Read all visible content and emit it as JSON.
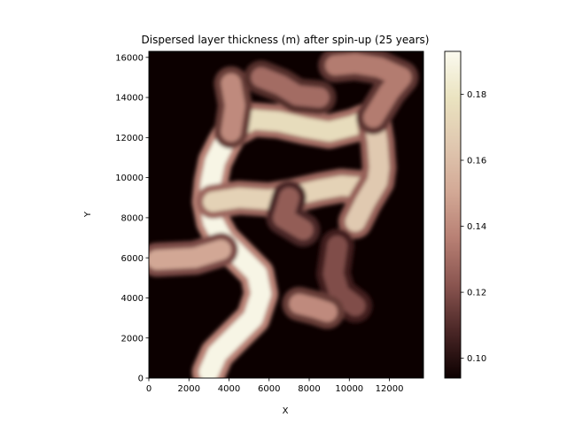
{
  "chart_data": {
    "type": "heatmap",
    "title": "Dispersed layer thickness (m) after spin-up (25 years)",
    "xlabel": "X",
    "ylabel": "Y",
    "xlim": [
      0,
      13700
    ],
    "ylim": [
      0,
      16300
    ],
    "xticks": [
      0,
      2000,
      4000,
      6000,
      8000,
      10000,
      12000
    ],
    "yticks": [
      0,
      2000,
      4000,
      6000,
      8000,
      10000,
      12000,
      14000,
      16000
    ],
    "colorbar": {
      "range": [
        0.094,
        0.193
      ],
      "ticks": [
        0.1,
        0.12,
        0.14,
        0.16,
        0.18
      ],
      "tick_labels": [
        "0.10",
        "0.12",
        "0.14",
        "0.16",
        "0.18"
      ],
      "colormap": "pink-like",
      "colors": [
        "#0c0000",
        "#4a2626",
        "#8a5550",
        "#b88074",
        "#d3a996",
        "#e0c8b0",
        "#eae3c0",
        "#fbfaef"
      ]
    },
    "background_value": 0.094,
    "features": [
      {
        "name": "main-N-S-channel",
        "value": 0.19,
        "path": [
          [
            3000,
            300
          ],
          [
            3400,
            1200
          ],
          [
            4200,
            2000
          ],
          [
            5200,
            3000
          ],
          [
            5600,
            4200
          ],
          [
            5400,
            5200
          ],
          [
            4500,
            6100
          ],
          [
            3700,
            6900
          ],
          [
            3200,
            7800
          ],
          [
            3000,
            8800
          ],
          [
            3100,
            9800
          ],
          [
            3300,
            10800
          ],
          [
            3700,
            11600
          ],
          [
            4100,
            12300
          ]
        ]
      },
      {
        "name": "upper-E-W-band",
        "value": 0.175,
        "path": [
          [
            4100,
            12300
          ],
          [
            5200,
            12900
          ],
          [
            6500,
            12800
          ],
          [
            7800,
            12500
          ],
          [
            9000,
            12300
          ],
          [
            10200,
            12600
          ],
          [
            11200,
            13000
          ]
        ]
      },
      {
        "name": "middle-E-W-band",
        "value": 0.17,
        "path": [
          [
            3200,
            8800
          ],
          [
            4500,
            9000
          ],
          [
            6000,
            8900
          ],
          [
            7200,
            9100
          ],
          [
            8500,
            9400
          ],
          [
            9600,
            9600
          ],
          [
            10800,
            9500
          ],
          [
            11400,
            9800
          ]
        ]
      },
      {
        "name": "east-connector",
        "value": 0.165,
        "path": [
          [
            11200,
            13000
          ],
          [
            11400,
            11800
          ],
          [
            11500,
            10500
          ],
          [
            11400,
            9800
          ],
          [
            10800,
            8800
          ],
          [
            10300,
            7800
          ]
        ]
      },
      {
        "name": "northeast-lobe",
        "value": 0.135,
        "path": [
          [
            9300,
            15600
          ],
          [
            10300,
            15700
          ],
          [
            11500,
            15500
          ],
          [
            12600,
            15000
          ],
          [
            12000,
            14300
          ],
          [
            11200,
            13000
          ]
        ]
      },
      {
        "name": "north-spur",
        "value": 0.14,
        "path": [
          [
            4100,
            12300
          ],
          [
            4300,
            13600
          ],
          [
            4100,
            14700
          ]
        ]
      },
      {
        "name": "north-center-blob",
        "value": 0.13,
        "path": [
          [
            5600,
            15000
          ],
          [
            6600,
            14600
          ],
          [
            7400,
            14100
          ],
          [
            8500,
            14000
          ]
        ]
      },
      {
        "name": "west-arm",
        "value": 0.15,
        "path": [
          [
            3600,
            6400
          ],
          [
            2300,
            6000
          ],
          [
            400,
            5900
          ]
        ]
      },
      {
        "name": "south-east-arm",
        "value": 0.12,
        "path": [
          [
            9400,
            6600
          ],
          [
            9200,
            5200
          ],
          [
            9500,
            4200
          ],
          [
            10300,
            3600
          ]
        ]
      },
      {
        "name": "south-blob",
        "value": 0.14,
        "path": [
          [
            7500,
            3700
          ],
          [
            8300,
            3500
          ],
          [
            8900,
            3300
          ]
        ]
      },
      {
        "name": "center-finger",
        "value": 0.125,
        "path": [
          [
            7000,
            9000
          ],
          [
            6700,
            8000
          ],
          [
            7700,
            7400
          ]
        ]
      }
    ]
  }
}
